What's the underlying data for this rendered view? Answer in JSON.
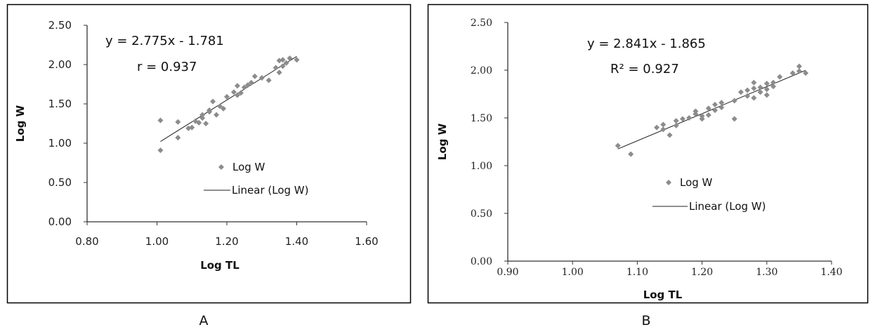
{
  "colors": {
    "point": "#8c8c8c",
    "trendline": "#222222",
    "frame": "#000000",
    "axis": "#333333"
  },
  "chart_data": [
    {
      "panel": "A",
      "type": "scatter",
      "xlabel": "Log TL",
      "ylabel": "Log W",
      "xlim": [
        0.8,
        1.6
      ],
      "ylim": [
        0.0,
        2.5
      ],
      "x_ticks": [
        "0.80",
        "1.00",
        "1.20",
        "1.40",
        "1.60"
      ],
      "y_ticks": [
        "0.00",
        "0.50",
        "1.00",
        "1.50",
        "2.00",
        "2.50"
      ],
      "equation": "y = 2.775x - 1.781",
      "stat": "r = 0.937",
      "series": [
        {
          "name": "Log W",
          "marker": "diamond",
          "x": [
            1.01,
            1.01,
            1.06,
            1.06,
            1.09,
            1.1,
            1.11,
            1.12,
            1.13,
            1.13,
            1.14,
            1.15,
            1.15,
            1.16,
            1.17,
            1.18,
            1.19,
            1.2,
            1.22,
            1.23,
            1.23,
            1.24,
            1.25,
            1.26,
            1.27,
            1.28,
            1.3,
            1.32,
            1.34,
            1.35,
            1.35,
            1.36,
            1.36,
            1.37,
            1.38,
            1.4
          ],
          "y": [
            0.91,
            1.29,
            1.07,
            1.27,
            1.19,
            1.2,
            1.28,
            1.26,
            1.32,
            1.36,
            1.25,
            1.42,
            1.4,
            1.53,
            1.36,
            1.47,
            1.44,
            1.59,
            1.65,
            1.61,
            1.73,
            1.64,
            1.71,
            1.74,
            1.77,
            1.85,
            1.83,
            1.8,
            1.96,
            1.9,
            2.05,
            2.06,
            1.98,
            2.02,
            2.08,
            2.06
          ]
        },
        {
          "name": "Linear (Log W)",
          "kind": "trendline",
          "slope": 2.775,
          "intercept": -1.781,
          "x_range": [
            1.01,
            1.4
          ]
        }
      ],
      "caption": "A"
    },
    {
      "panel": "B",
      "type": "scatter",
      "xlabel": "Log TL",
      "ylabel": "Log W",
      "xlim": [
        0.9,
        1.4
      ],
      "ylim": [
        0.0,
        2.5
      ],
      "x_ticks": [
        "0.90",
        "1.00",
        "1.10",
        "1.20",
        "1.30",
        "1.40"
      ],
      "y_ticks": [
        "0.00",
        "0.50",
        "1.00",
        "1.50",
        "2.00",
        "2.50"
      ],
      "equation": "y = 2.841x - 1.865",
      "stat": "R² = 0.927",
      "series": [
        {
          "name": "Log W",
          "marker": "diamond",
          "x": [
            1.07,
            1.09,
            1.13,
            1.14,
            1.14,
            1.15,
            1.16,
            1.16,
            1.17,
            1.18,
            1.19,
            1.19,
            1.2,
            1.2,
            1.21,
            1.21,
            1.22,
            1.22,
            1.23,
            1.23,
            1.25,
            1.25,
            1.26,
            1.27,
            1.27,
            1.28,
            1.28,
            1.28,
            1.29,
            1.29,
            1.3,
            1.3,
            1.3,
            1.31,
            1.31,
            1.32,
            1.34,
            1.35,
            1.35,
            1.36
          ],
          "y": [
            1.21,
            1.12,
            1.4,
            1.43,
            1.38,
            1.32,
            1.47,
            1.42,
            1.49,
            1.5,
            1.57,
            1.54,
            1.52,
            1.49,
            1.6,
            1.53,
            1.64,
            1.58,
            1.66,
            1.61,
            1.68,
            1.49,
            1.77,
            1.73,
            1.79,
            1.81,
            1.87,
            1.71,
            1.77,
            1.82,
            1.74,
            1.86,
            1.8,
            1.87,
            1.83,
            1.93,
            1.97,
            2.04,
            1.99,
            1.97
          ]
        },
        {
          "name": "Linear (Log W)",
          "kind": "trendline",
          "slope": 2.841,
          "intercept": -1.865,
          "x_range": [
            1.07,
            1.36
          ]
        }
      ],
      "caption": "B"
    }
  ]
}
